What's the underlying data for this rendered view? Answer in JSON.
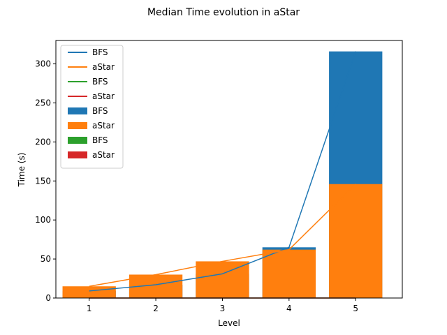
{
  "figure_title": "Median Time evolution in aStar",
  "chart_data": {
    "type": "bar",
    "title": "Median Time evolution in aStar",
    "xlabel": "Level",
    "ylabel": "Time (s)",
    "categories": [
      1,
      2,
      3,
      4,
      5
    ],
    "xlim": [
      0.5,
      5.7
    ],
    "ylim": [
      0,
      330
    ],
    "yticks": [
      0,
      50,
      100,
      150,
      200,
      250,
      300
    ],
    "grid": false,
    "legend_position": "upper-left",
    "bar_series": [
      {
        "name": "BFS",
        "color": "#1f77b4",
        "values": [
          9,
          17,
          31,
          65,
          316
        ]
      },
      {
        "name": "aStar",
        "color": "#ff7f0e",
        "values": [
          15,
          30,
          47,
          62,
          146
        ]
      },
      {
        "name": "BFS",
        "color": "#2ca02c",
        "values": [
          0,
          0,
          0,
          0,
          0
        ]
      },
      {
        "name": "aStar",
        "color": "#d62728",
        "values": [
          0,
          0,
          0,
          0,
          0
        ]
      }
    ],
    "line_series": [
      {
        "name": "BFS",
        "color": "#1f77b4",
        "values": [
          9,
          17,
          31,
          65,
          316
        ]
      },
      {
        "name": "aStar",
        "color": "#ff7f0e",
        "values": [
          15,
          30,
          47,
          62,
          146
        ]
      },
      {
        "name": "BFS",
        "color": "#2ca02c",
        "values": [
          0,
          0,
          0,
          0,
          0
        ]
      },
      {
        "name": "aStar",
        "color": "#d62728",
        "values": [
          0,
          0,
          0,
          0,
          0
        ]
      }
    ]
  }
}
